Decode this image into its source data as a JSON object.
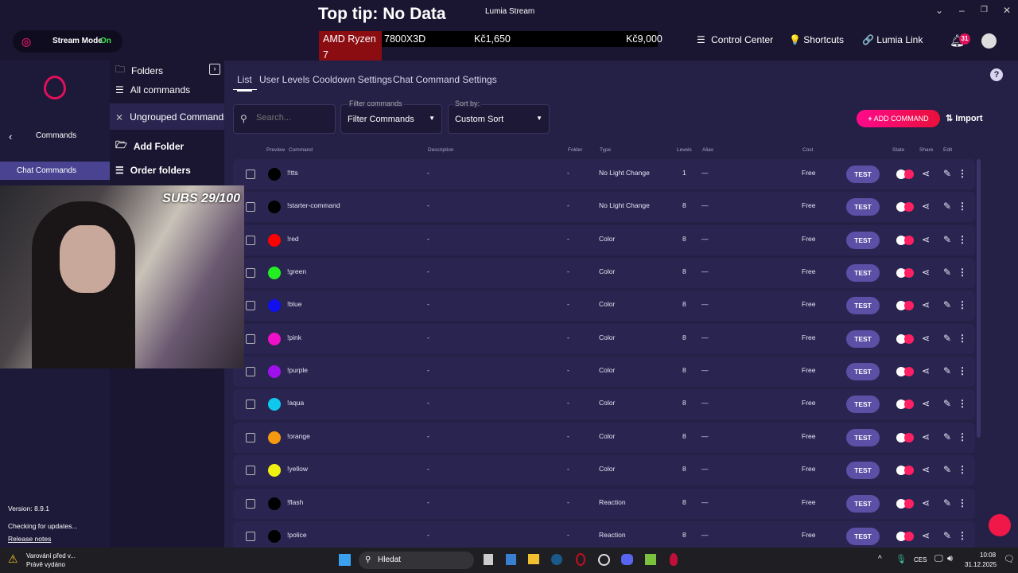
{
  "window": {
    "title": "Lumia Stream"
  },
  "overlay": {
    "top_tip": "Top tip: No Data",
    "ticker": [
      "AMD Ryzen 7",
      "7800X3D",
      "Kč1,650",
      "Kč9,000"
    ],
    "subs": "SUBS 29/100"
  },
  "topbar": {
    "stream_mode_label": "Stream Mode",
    "stream_mode_state": "On",
    "control_center": "Control Center",
    "shortcuts": "Shortcuts",
    "lumia_link": "Lumia Link",
    "notifications": "31"
  },
  "sidebar": {
    "back_label": "Commands",
    "active_item": "Chat Commands",
    "version": "Version: 8.9.1",
    "update_status": "Checking for updates...",
    "release_notes": "Release notes"
  },
  "folders": {
    "title": "Folders",
    "items": [
      "All commands",
      "Ungrouped Commands",
      "Add Folder",
      "Order folders"
    ]
  },
  "tabs": [
    "List",
    "User Levels",
    "Cooldown Settings",
    "Chat Command Settings"
  ],
  "toolbar": {
    "search_placeholder": "Search...",
    "filter_label": "Filter commands",
    "filter_value": "Filter Commands",
    "sort_label": "Sort by:",
    "sort_value": "Custom Sort",
    "add_command": "ADD COMMAND",
    "import": "Import"
  },
  "columns": [
    "Preview",
    "Command",
    "Description",
    "Folder",
    "Type",
    "Levels",
    "Alias",
    "Cost",
    "State",
    "Share",
    "Edit"
  ],
  "rows": [
    {
      "color": "#000000",
      "command": "!!tts",
      "description": "-",
      "folder": "-",
      "type": "No Light Change",
      "levels": "1",
      "alias": "—",
      "cost": "Free"
    },
    {
      "color": "#000000",
      "command": "!starter-command",
      "description": "-",
      "folder": "-",
      "type": "No Light Change",
      "levels": "8",
      "alias": "—",
      "cost": "Free"
    },
    {
      "color": "#ff0000",
      "command": "!red",
      "description": "-",
      "folder": "-",
      "type": "Color",
      "levels": "8",
      "alias": "—",
      "cost": "Free"
    },
    {
      "color": "#22ee22",
      "command": "!green",
      "description": "-",
      "folder": "-",
      "type": "Color",
      "levels": "8",
      "alias": "—",
      "cost": "Free"
    },
    {
      "color": "#1010ee",
      "command": "!blue",
      "description": "-",
      "folder": "-",
      "type": "Color",
      "levels": "8",
      "alias": "—",
      "cost": "Free"
    },
    {
      "color": "#ee10c8",
      "command": "!pink",
      "description": "-",
      "folder": "-",
      "type": "Color",
      "levels": "8",
      "alias": "—",
      "cost": "Free"
    },
    {
      "color": "#a010ee",
      "command": "!purple",
      "description": "-",
      "folder": "-",
      "type": "Color",
      "levels": "8",
      "alias": "—",
      "cost": "Free"
    },
    {
      "color": "#10c8ee",
      "command": "!aqua",
      "description": "-",
      "folder": "-",
      "type": "Color",
      "levels": "8",
      "alias": "—",
      "cost": "Free"
    },
    {
      "color": "#f59a10",
      "command": "!orange",
      "description": "-",
      "folder": "-",
      "type": "Color",
      "levels": "8",
      "alias": "—",
      "cost": "Free"
    },
    {
      "color": "#f0f010",
      "command": "!yellow",
      "description": "-",
      "folder": "-",
      "type": "Color",
      "levels": "8",
      "alias": "—",
      "cost": "Free"
    },
    {
      "color": "#000000",
      "command": "!flash",
      "description": "-",
      "folder": "-",
      "type": "Reaction",
      "levels": "8",
      "alias": "—",
      "cost": "Free"
    },
    {
      "color": "#000000",
      "command": "!police",
      "description": "-",
      "folder": "-",
      "type": "Reaction",
      "levels": "8",
      "alias": "—",
      "cost": "Free"
    }
  ],
  "row_test_label": "TEST",
  "taskbar": {
    "notification_title": "Varování před v...",
    "notification_sub": "Právě vydáno",
    "search": "Hledat",
    "lang": "CES",
    "time": "10:08",
    "date": "31.12.2025"
  },
  "colors": {
    "accent": "#e8185c",
    "test_button": "#5b4fa6"
  }
}
